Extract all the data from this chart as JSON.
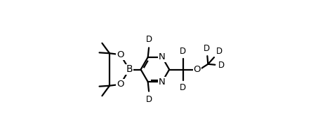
{
  "background": "#ffffff",
  "line_color": "#000000",
  "line_width": 1.6,
  "font_size": 9.5,
  "figsize": [
    4.63,
    1.99
  ],
  "dpi": 100,
  "xlim": [
    0,
    1.0
  ],
  "ylim": [
    0,
    1.0
  ]
}
